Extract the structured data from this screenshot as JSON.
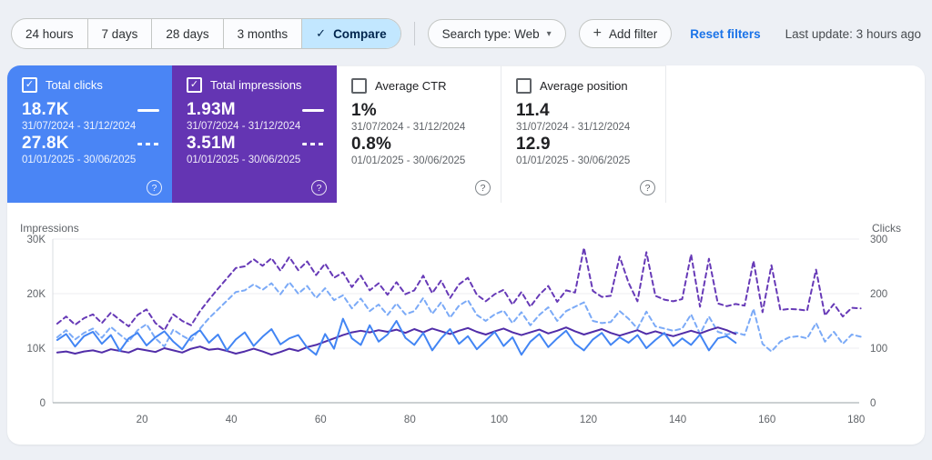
{
  "toolbar": {
    "date_buttons": [
      {
        "label": "24 hours",
        "active": false
      },
      {
        "label": "7 days",
        "active": false
      },
      {
        "label": "28 days",
        "active": false
      },
      {
        "label": "3 months",
        "active": false
      },
      {
        "label": "Compare",
        "active": true
      }
    ],
    "search_type_label": "Search type: Web",
    "add_filter_label": "Add filter",
    "reset_filters_label": "Reset filters",
    "last_update": "Last update: 3 hours ago"
  },
  "icons": {
    "check": "✓",
    "caret_down": "▾",
    "plus": "+",
    "help": "?"
  },
  "colors": {
    "clicks_card_bg": "#4a85f5",
    "impressions_card_bg": "#6435b3",
    "compare_active_bg": "#c2e7ff",
    "link_blue": "#1a73e8",
    "clicks_line_solid": "#4285f4",
    "clicks_line_dashed": "#7baaf7",
    "impressions_line_solid": "#512da8",
    "impressions_line_dashed": "#673ab7"
  },
  "cards": [
    {
      "label": "Total clicks",
      "checked": true,
      "value1": "18.7K",
      "range1": "31/07/2024 - 31/12/2024",
      "value2": "27.8K",
      "range2": "01/01/2025 - 30/06/2025"
    },
    {
      "label": "Total impressions",
      "checked": true,
      "value1": "1.93M",
      "range1": "31/07/2024 - 31/12/2024",
      "value2": "3.51M",
      "range2": "01/01/2025 - 30/06/2025"
    },
    {
      "label": "Average CTR",
      "checked": false,
      "value1": "1%",
      "range1": "31/07/2024 - 31/12/2024",
      "value2": "0.8%",
      "range2": "01/01/2025 - 30/06/2025"
    },
    {
      "label": "Average position",
      "checked": false,
      "value1": "11.4",
      "range1": "31/07/2024 - 31/12/2024",
      "value2": "12.9",
      "range2": "01/01/2025 - 30/06/2025"
    }
  ],
  "chart_data": {
    "type": "line",
    "left_axis": {
      "title": "Impressions",
      "ticks": [
        "0",
        "10K",
        "20K",
        "30K"
      ],
      "min": 0,
      "max": 30000
    },
    "right_axis": {
      "title": "Clicks",
      "ticks": [
        "0",
        "100",
        "200",
        "300"
      ],
      "min": 0,
      "max": 300
    },
    "x_ticks": [
      20,
      40,
      60,
      80,
      100,
      120,
      140,
      160,
      180
    ],
    "x_max": 185,
    "grid": true,
    "legend_position": "in-cards",
    "series": [
      {
        "name": "Total impressions 01/01/2025 - 30/06/2025",
        "axis": "left",
        "style": "dashed",
        "color": "#673ab7",
        "unit": "thousands",
        "start_day": 1,
        "day_step": 2,
        "values": [
          14.5,
          15.8,
          14.3,
          15.5,
          16.2,
          14.6,
          16.5,
          15.2,
          14.0,
          16.1,
          17.1,
          14.6,
          13.3,
          16.2,
          15.0,
          14.2,
          16.8,
          18.9,
          20.9,
          22.8,
          24.7,
          25.0,
          26.3,
          25.1,
          26.5,
          24.2,
          26.7,
          24.3,
          25.9,
          23.4,
          25.5,
          22.9,
          23.9,
          21.2,
          23.3,
          20.6,
          21.9,
          19.8,
          22.1,
          19.9,
          20.6,
          23.3,
          20.1,
          22.4,
          19.2,
          21.7,
          22.9,
          19.8,
          18.6,
          19.9,
          20.7,
          18.0,
          20.3,
          17.6,
          19.8,
          21.4,
          18.5,
          20.6,
          20.2,
          28.4,
          20.5,
          19.4,
          19.6,
          26.8,
          22.0,
          18.6,
          27.6,
          19.6,
          18.9,
          18.6,
          19.0,
          27.2,
          17.6,
          26.4,
          18.2,
          17.7,
          18.1,
          17.8,
          26.0,
          16.6,
          25.2,
          17.0,
          17.2,
          17.1,
          16.9,
          24.4,
          16.0,
          18.1,
          15.8,
          17.4,
          17.3
        ]
      },
      {
        "name": "Total clicks 01/01/2025 - 30/06/2025",
        "axis": "right",
        "style": "dashed",
        "color": "#7baaf7",
        "unit": "clicks",
        "start_day": 1,
        "day_step": 2,
        "values": [
          120,
          133,
          116,
          128,
          136,
          119,
          139,
          125,
          112,
          133,
          144,
          118,
          103,
          134,
          123,
          114,
          136,
          155,
          171,
          187,
          203,
          206,
          217,
          207,
          219,
          199,
          221,
          200,
          214,
          192,
          210,
          188,
          197,
          173,
          191,
          168,
          180,
          161,
          182,
          162,
          168,
          192,
          163,
          184,
          156,
          178,
          188,
          161,
          150,
          162,
          169,
          146,
          166,
          142,
          161,
          175,
          150,
          168,
          176,
          184,
          150,
          146,
          148,
          168,
          154,
          136,
          167,
          140,
          136,
          132,
          136,
          162,
          126,
          158,
          130,
          125,
          129,
          124,
          172,
          108,
          94,
          112,
          120,
          122,
          118,
          146,
          112,
          130,
          108,
          125,
          121
        ]
      },
      {
        "name": "Total impressions 31/07/2024 - 31/12/2024",
        "axis": "left",
        "style": "solid",
        "color": "#512da8",
        "unit": "thousands",
        "start_day": 1,
        "day_step": 2,
        "values": [
          9.2,
          9.4,
          9.0,
          9.4,
          9.6,
          9.2,
          9.8,
          9.5,
          9.2,
          9.9,
          9.6,
          9.3,
          10.0,
          9.6,
          9.2,
          9.9,
          10.3,
          9.7,
          9.9,
          9.5,
          9.0,
          9.4,
          9.9,
          9.4,
          8.8,
          9.3,
          9.9,
          9.5,
          10.2,
          10.6,
          11.2,
          11.8,
          12.4,
          12.9,
          13.2,
          12.9,
          13.3,
          13.0,
          13.4,
          12.8,
          13.5,
          12.9,
          13.6,
          13.1,
          12.6,
          13.2,
          13.7,
          13.0,
          12.5,
          13.1,
          13.6,
          12.9,
          12.4,
          12.9,
          13.4,
          12.7,
          13.2,
          13.8,
          13.1,
          12.5,
          13.0,
          13.5,
          12.8,
          12.3,
          12.8,
          13.3,
          12.6,
          13.1,
          12.6,
          12.2,
          12.7,
          13.2,
          12.7,
          13.3,
          13.8,
          13.3,
          12.6
        ]
      },
      {
        "name": "Total clicks 31/07/2024 - 31/12/2024",
        "axis": "right",
        "style": "solid",
        "color": "#4285f4",
        "unit": "clicks",
        "start_day": 1,
        "day_step": 2,
        "values": [
          115,
          126,
          103,
          122,
          130,
          108,
          124,
          95,
          118,
          128,
          105,
          120,
          131,
          112,
          98,
          122,
          133,
          110,
          125,
          96,
          116,
          129,
          104,
          121,
          135,
          107,
          118,
          124,
          101,
          88,
          126,
          99,
          154,
          118,
          106,
          142,
          112,
          125,
          150,
          119,
          106,
          128,
          96,
          118,
          135,
          108,
          122,
          98,
          114,
          130,
          104,
          120,
          88,
          112,
          126,
          102,
          118,
          132,
          108,
          96,
          116,
          128,
          106,
          120,
          110,
          124,
          100,
          115,
          128,
          104,
          118,
          106,
          125,
          96,
          118,
          122,
          110
        ]
      }
    ]
  }
}
